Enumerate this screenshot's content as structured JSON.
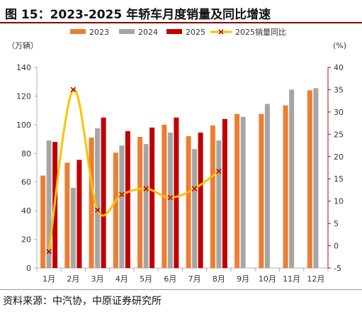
{
  "title": "图 15：2023-2025 年轿车月度销量及同比增速",
  "source": "资料来源：中汽协，中原证券研究所",
  "chart_data": {
    "type": "bar+line",
    "categories": [
      "1月",
      "2月",
      "3月",
      "4月",
      "5月",
      "6月",
      "7月",
      "8月",
      "9月",
      "10月",
      "11月",
      "12月"
    ],
    "left_axis": {
      "unit": "（万辆）",
      "ylim": [
        0,
        140
      ],
      "ticks": [
        0,
        20,
        40,
        60,
        80,
        100,
        120,
        140
      ]
    },
    "right_axis": {
      "unit": "(%)",
      "ylim": [
        -5,
        40
      ],
      "ticks": [
        -5,
        0,
        5,
        10,
        15,
        20,
        25,
        30,
        35,
        40
      ]
    },
    "series": [
      {
        "name": "2023",
        "type": "bar",
        "axis": "left",
        "color": "#ed7d31",
        "values": [
          64.5,
          73.5,
          91,
          80.5,
          91.5,
          100,
          92,
          99.5,
          107.5,
          107.5,
          113.5,
          124
        ]
      },
      {
        "name": "2024",
        "type": "bar",
        "axis": "left",
        "color": "#a5a5a5",
        "values": [
          89,
          56,
          97.5,
          85.5,
          86.5,
          94.5,
          83,
          89,
          105.5,
          114.5,
          124.5,
          125.5
        ]
      },
      {
        "name": "2025",
        "type": "bar",
        "axis": "left",
        "color": "#c00000",
        "values": [
          88,
          75.5,
          105,
          95.5,
          98,
          105,
          94.5,
          104,
          null,
          null,
          null,
          null
        ]
      },
      {
        "name": "2025销量同比",
        "type": "line",
        "axis": "right",
        "color": "#ffc000",
        "marker_color": "#c00000",
        "values": [
          -1.3,
          35,
          8,
          11.5,
          12.8,
          10.8,
          12.8,
          16.7,
          null,
          null,
          null,
          null
        ]
      }
    ],
    "legend_position": "top",
    "grid": false
  }
}
